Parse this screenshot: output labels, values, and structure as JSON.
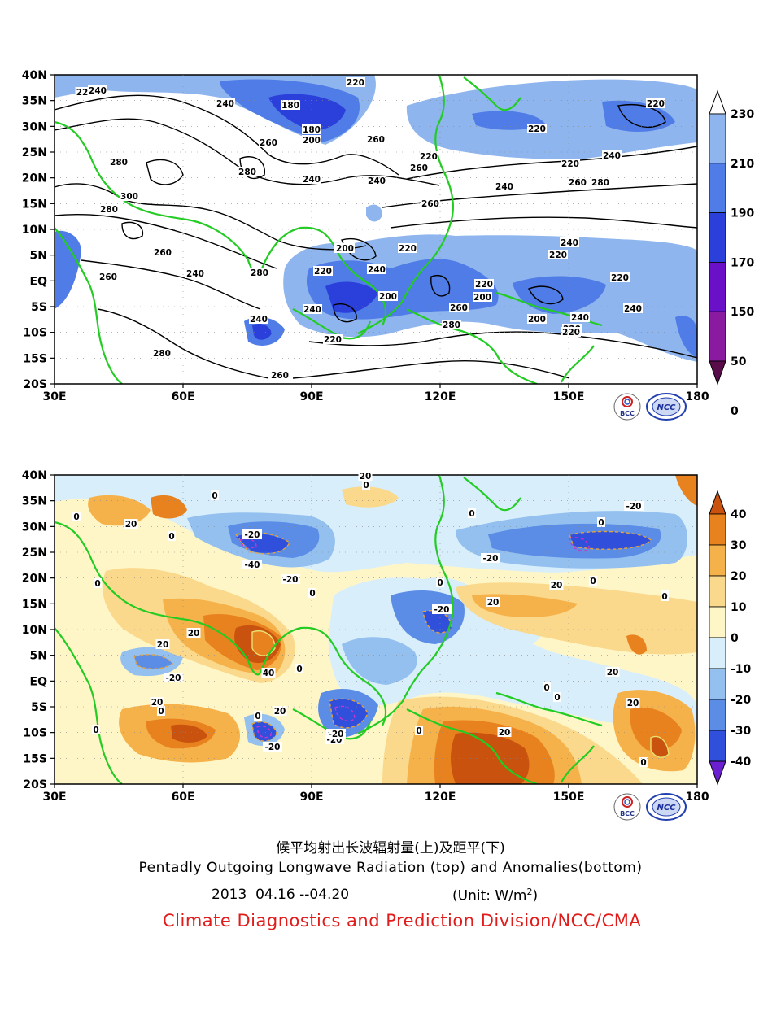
{
  "top_panel": {
    "lat_labels": [
      "40N",
      "35N",
      "30N",
      "25N",
      "20N",
      "15N",
      "10N",
      "5N",
      "EQ",
      "5S",
      "10S",
      "15S",
      "20S"
    ],
    "lon_labels": [
      "30E",
      "60E",
      "90E",
      "120E",
      "150E",
      "180"
    ],
    "colorbar_labels": [
      "230",
      "210",
      "190",
      "170",
      "150",
      "50",
      "0"
    ],
    "colorbar_colors": [
      "#ffffff",
      "#8fb5ee",
      "#4f7ce6",
      "#2b3fdb",
      "#6a10c8",
      "#8a1aa0",
      "#5a0c4a"
    ],
    "contour_labels": [
      "240",
      "22",
      "220",
      "240",
      "180",
      "180",
      "200",
      "260",
      "260",
      "280",
      "280",
      "300",
      "280",
      "240",
      "220",
      "220",
      "220",
      "260",
      "240",
      "240",
      "220",
      "200",
      "220",
      "240",
      "240",
      "200",
      "260",
      "220",
      "280",
      "260",
      "240",
      "260",
      "200",
      "220",
      "240",
      "220",
      "200",
      "260",
      "280",
      "240",
      "220",
      "280",
      "260",
      "240",
      "220",
      "220",
      "240",
      "240",
      "200",
      "200",
      "220",
      "260",
      "280"
    ]
  },
  "bottom_panel": {
    "lat_labels": [
      "40N",
      "35N",
      "30N",
      "25N",
      "20N",
      "15N",
      "10N",
      "5N",
      "EQ",
      "5S",
      "10S",
      "15S",
      "20S"
    ],
    "lon_labels": [
      "30E",
      "60E",
      "90E",
      "120E",
      "150E",
      "180"
    ],
    "colorbar_labels": [
      "40",
      "30",
      "20",
      "10",
      "0",
      "-10",
      "-20",
      "-30",
      "-40"
    ],
    "colorbar_colors": [
      "#c8520e",
      "#e8821f",
      "#f6b24a",
      "#fbd98c",
      "#fff6c8",
      "#d8eefb",
      "#94c0ef",
      "#5b8ce6",
      "#3050dc",
      "#6a1fd0"
    ],
    "contour_labels": [
      "0",
      "20",
      "20",
      "0",
      "0",
      "-20",
      "-40",
      "-20",
      "0",
      "0",
      "20",
      "0",
      "0",
      "-20",
      "-20",
      "20",
      "0",
      "-20",
      "20",
      "0",
      "0",
      "0",
      "-20",
      "20",
      "0",
      "20",
      "0",
      "-20",
      "-20",
      "40",
      "0",
      "20",
      "0",
      "20",
      "0",
      "0",
      "0",
      "-20",
      "20",
      "0",
      "20",
      "0",
      "20"
    ]
  },
  "logos": {
    "left_text": "BCC",
    "right_text": "NCC"
  },
  "captions": {
    "chinese": "候平均射出长波辐射量(上)及距平(下)",
    "english": "Pentadly Outgoing Longwave Radiation (top) and Anomalies(bottom)",
    "date": "2013  04.16 --04.20",
    "unit_prefix": "(Unit: W/m",
    "unit_sup": "2",
    "unit_suffix": ")",
    "org": "Climate Diagnostics and Prediction Division/NCC/CMA"
  }
}
